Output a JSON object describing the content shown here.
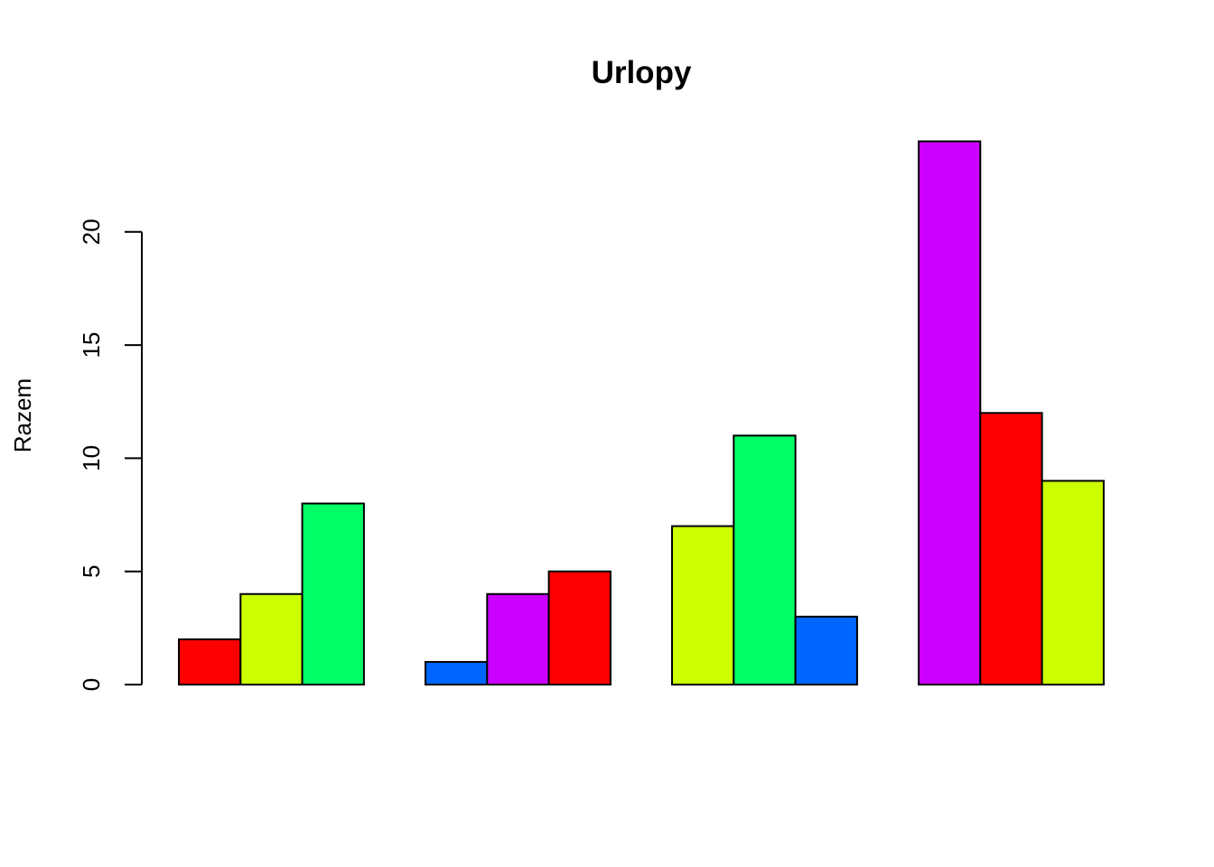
{
  "chart_data": {
    "type": "bar",
    "mode": "grouped",
    "title": "Urlopy",
    "xlabel": "",
    "ylabel": "Razem",
    "ylim": [
      0,
      25
    ],
    "yticks": [
      0,
      5,
      10,
      15,
      20
    ],
    "grid": false,
    "legend": "none",
    "groups": [
      {
        "bars": [
          {
            "value": 2,
            "color": "#FF0000"
          },
          {
            "value": 4,
            "color": "#CCFF00"
          },
          {
            "value": 8,
            "color": "#00FF66"
          }
        ]
      },
      {
        "bars": [
          {
            "value": 1,
            "color": "#0066FF"
          },
          {
            "value": 4,
            "color": "#CC00FF"
          },
          {
            "value": 5,
            "color": "#FF0000"
          }
        ]
      },
      {
        "bars": [
          {
            "value": 7,
            "color": "#CCFF00"
          },
          {
            "value": 11,
            "color": "#00FF66"
          },
          {
            "value": 3,
            "color": "#0066FF"
          }
        ]
      },
      {
        "bars": [
          {
            "value": 24,
            "color": "#CC00FF"
          },
          {
            "value": 12,
            "color": "#FF0000"
          },
          {
            "value": 9,
            "color": "#CCFF00"
          }
        ]
      }
    ]
  }
}
